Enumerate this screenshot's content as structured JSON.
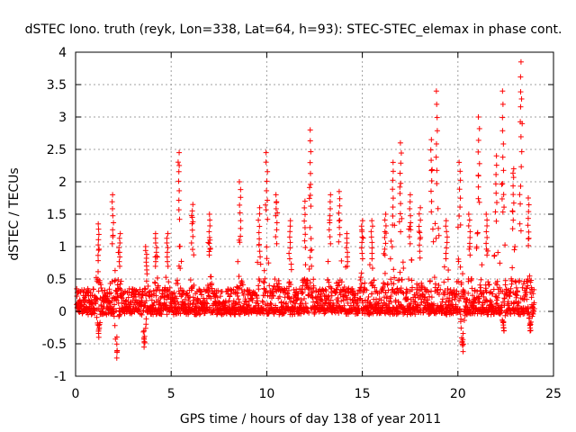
{
  "chart_data": {
    "type": "scatter",
    "title": "dSTEC Iono. truth (reyk, Lon=338, Lat=64, h=93): STEC-STEC_elemax in phase cont.",
    "xlabel": "GPS time / hours of day 138 of year 2011",
    "ylabel": "dSTEC  / TECUs",
    "xlim": [
      0,
      25
    ],
    "ylim": [
      -1,
      4
    ],
    "xticks": [
      "0",
      "5",
      "10",
      "15",
      "20",
      "25"
    ],
    "yticks": [
      "-1",
      "-0.5",
      "0",
      "0.5",
      "1",
      "1.5",
      "2",
      "2.5",
      "3",
      "3.5",
      "4"
    ],
    "grid": true,
    "marker": "plus",
    "color": "#ff0000",
    "peaks": [
      {
        "x": 1.2,
        "y": 1.35
      },
      {
        "x": 1.95,
        "y": 1.8
      },
      {
        "x": 2.3,
        "y": 1.2
      },
      {
        "x": 3.7,
        "y": 1.0
      },
      {
        "x": 4.2,
        "y": 1.2
      },
      {
        "x": 4.8,
        "y": 1.2
      },
      {
        "x": 5.4,
        "y": 2.45
      },
      {
        "x": 6.1,
        "y": 1.65
      },
      {
        "x": 7.0,
        "y": 1.5
      },
      {
        "x": 8.6,
        "y": 2.0
      },
      {
        "x": 9.6,
        "y": 1.6
      },
      {
        "x": 10.0,
        "y": 2.45
      },
      {
        "x": 10.5,
        "y": 1.8
      },
      {
        "x": 11.2,
        "y": 1.4
      },
      {
        "x": 12.0,
        "y": 1.7
      },
      {
        "x": 12.3,
        "y": 2.8
      },
      {
        "x": 13.3,
        "y": 1.8
      },
      {
        "x": 13.8,
        "y": 1.85
      },
      {
        "x": 14.2,
        "y": 1.2
      },
      {
        "x": 15.0,
        "y": 1.4
      },
      {
        "x": 15.5,
        "y": 1.4
      },
      {
        "x": 16.2,
        "y": 1.5
      },
      {
        "x": 16.6,
        "y": 2.3
      },
      {
        "x": 17.0,
        "y": 2.6
      },
      {
        "x": 17.5,
        "y": 1.8
      },
      {
        "x": 18.0,
        "y": 1.6
      },
      {
        "x": 18.6,
        "y": 2.65
      },
      {
        "x": 18.9,
        "y": 3.4
      },
      {
        "x": 19.4,
        "y": 1.4
      },
      {
        "x": 20.1,
        "y": 2.3
      },
      {
        "x": 20.6,
        "y": 1.5
      },
      {
        "x": 21.1,
        "y": 3.0
      },
      {
        "x": 21.5,
        "y": 1.5
      },
      {
        "x": 22.0,
        "y": 2.4
      },
      {
        "x": 22.35,
        "y": 3.4
      },
      {
        "x": 22.9,
        "y": 2.2
      },
      {
        "x": 23.3,
        "y": 3.85
      },
      {
        "x": 23.7,
        "y": 1.75
      }
    ],
    "troughs": [
      {
        "x": 1.2,
        "y": -0.4
      },
      {
        "x": 2.15,
        "y": -0.72
      },
      {
        "x": 3.6,
        "y": -0.55
      },
      {
        "x": 20.25,
        "y": -0.62
      },
      {
        "x": 22.4,
        "y": -0.3
      },
      {
        "x": 23.8,
        "y": -0.3
      }
    ]
  }
}
